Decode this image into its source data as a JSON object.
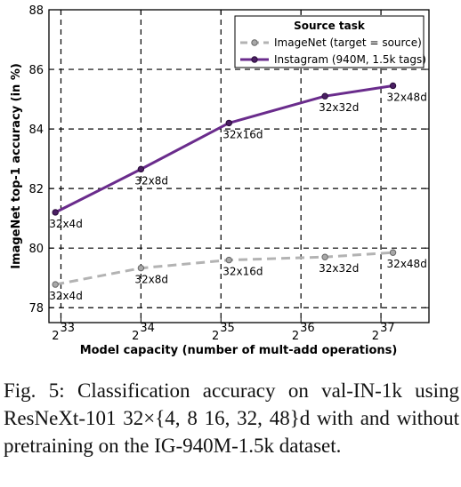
{
  "chart_data": {
    "type": "line",
    "xlabel": "Model capacity (number of mult-add operations)",
    "ylabel": "ImageNet top-1 accuracy (in %)",
    "x_scale": "log2",
    "x_ticks": [
      {
        "base": "2",
        "exp": "33",
        "value": 33
      },
      {
        "base": "2",
        "exp": "34",
        "value": 34
      },
      {
        "base": "2",
        "exp": "35",
        "value": 35
      },
      {
        "base": "2",
        "exp": "36",
        "value": 36
      },
      {
        "base": "2",
        "exp": "37",
        "value": 37
      }
    ],
    "xlim": [
      32.85,
      37.6
    ],
    "ylim": [
      77.5,
      88
    ],
    "y_ticks": [
      "78",
      "80",
      "82",
      "84",
      "86",
      "88"
    ],
    "grid": true,
    "legend": {
      "title": "Source task",
      "placement": "top-right"
    },
    "series": [
      {
        "name": "ImageNet (target = source)",
        "color": "#b3b3b3",
        "dashed": true,
        "points": [
          {
            "x": 32.93,
            "y": 78.78,
            "label": "32x4d"
          },
          {
            "x": 34.0,
            "y": 79.33,
            "label": "32x8d"
          },
          {
            "x": 35.1,
            "y": 79.6,
            "label": "32x16d"
          },
          {
            "x": 36.3,
            "y": 79.7,
            "label": "32x32d"
          },
          {
            "x": 37.15,
            "y": 79.85,
            "label": "32x48d"
          }
        ]
      },
      {
        "name": "Instagram (940M, 1.5k tags)",
        "color": "#6a2c8c",
        "dashed": false,
        "points": [
          {
            "x": 32.93,
            "y": 81.2,
            "label": "32x4d"
          },
          {
            "x": 34.0,
            "y": 82.65,
            "label": "32x8d"
          },
          {
            "x": 35.1,
            "y": 84.2,
            "label": "32x16d"
          },
          {
            "x": 36.3,
            "y": 85.1,
            "label": "32x32d"
          },
          {
            "x": 37.15,
            "y": 85.45,
            "label": "32x48d"
          }
        ]
      }
    ]
  },
  "caption": "Fig. 5: Classification accuracy on val-IN-1k using ResNeXt-101 32×{4, 8 16, 32, 48}d with and without pretraining on the IG-940M-1.5k dataset."
}
